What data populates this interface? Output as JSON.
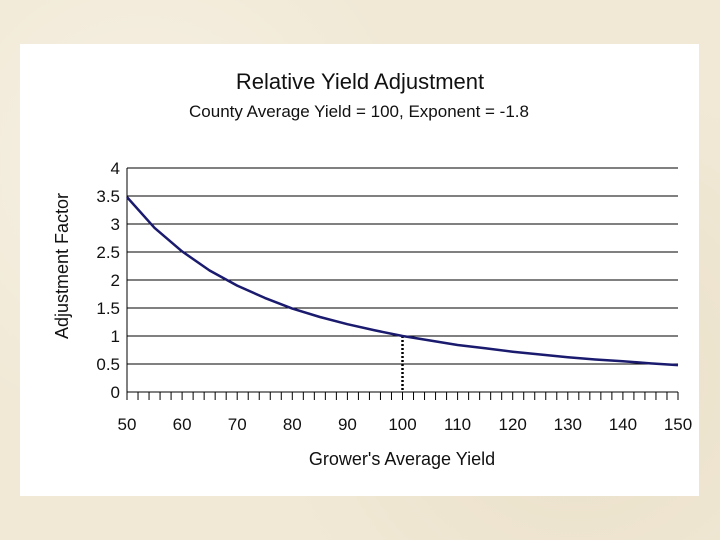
{
  "colors": {
    "background": "#f1e9d6",
    "panel": "#ffffff",
    "series_line": "#1a1a6e",
    "gridline": "#000000",
    "marker_line": "#000000"
  },
  "chart_data": {
    "type": "line",
    "title": "Relative Yield Adjustment",
    "subtitle": "County Average Yield = 100, Exponent = -1.8",
    "xlabel": "Grower's Average Yield",
    "ylabel": "Adjustment Factor",
    "xlim": [
      50,
      150
    ],
    "ylim": [
      0,
      4
    ],
    "grid": true,
    "xticks": [
      50,
      60,
      70,
      80,
      90,
      100,
      110,
      120,
      130,
      140,
      150
    ],
    "yticks": [
      0,
      0.5,
      1,
      1.5,
      2,
      2.5,
      3,
      3.5,
      4
    ],
    "xtick_labels": [
      "50",
      "60",
      "70",
      "80",
      "90",
      "100",
      "110",
      "120",
      "130",
      "140",
      "150"
    ],
    "ytick_labels": [
      "0",
      "0.5",
      "1",
      "1.5",
      "2",
      "2.5",
      "3",
      "3.5",
      "4"
    ],
    "reference": {
      "county_average_yield": 100,
      "exponent": -1.8
    },
    "marker_line": {
      "x": 100,
      "y_from": 0,
      "y_to": 1,
      "style": "dotted"
    },
    "series": [
      {
        "name": "Adjustment Factor",
        "x": [
          50,
          55,
          60,
          65,
          70,
          75,
          80,
          85,
          90,
          95,
          100,
          105,
          110,
          115,
          120,
          125,
          130,
          135,
          140,
          145,
          150
        ],
        "values": [
          3.48,
          2.93,
          2.51,
          2.17,
          1.9,
          1.68,
          1.49,
          1.34,
          1.21,
          1.1,
          1.0,
          0.92,
          0.84,
          0.78,
          0.72,
          0.67,
          0.62,
          0.58,
          0.55,
          0.51,
          0.48
        ]
      }
    ]
  }
}
